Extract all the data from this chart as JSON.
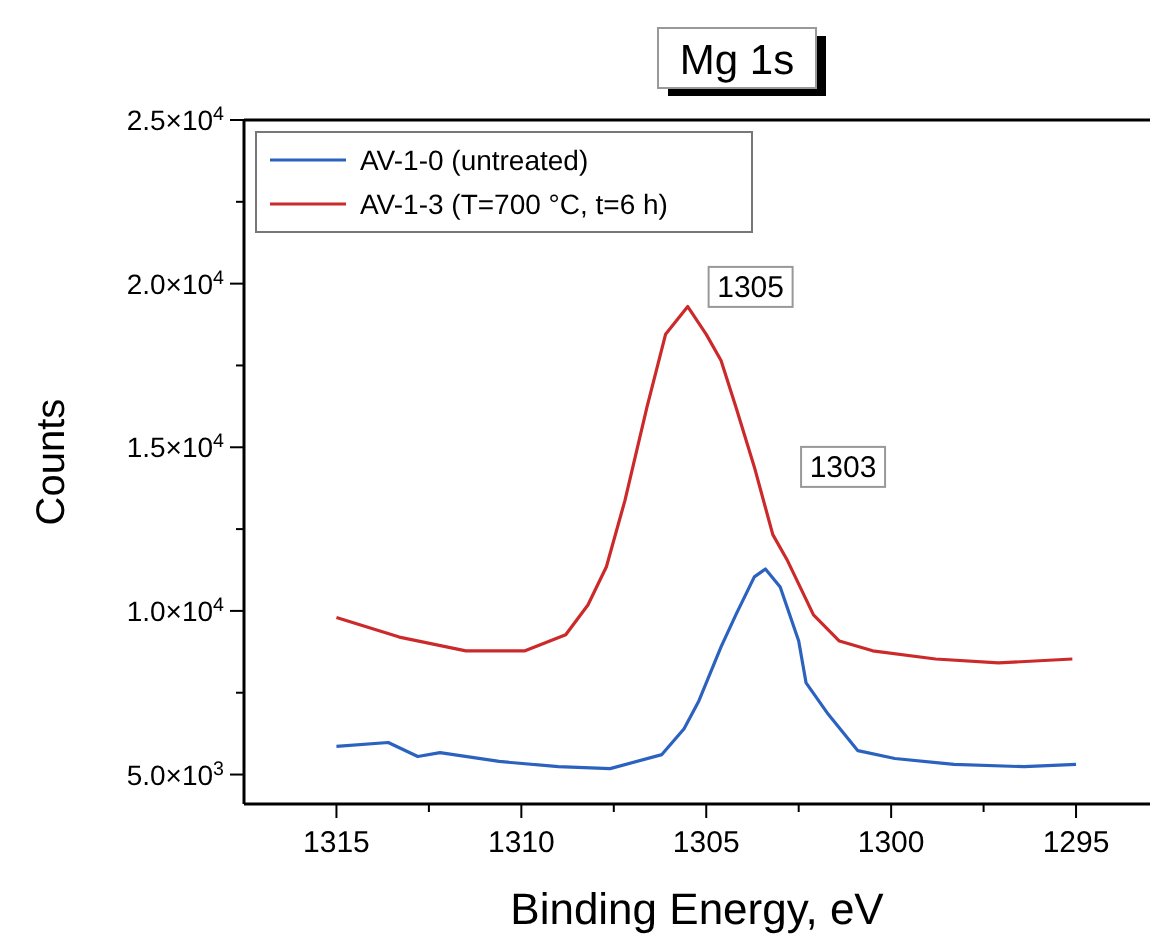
{
  "chart_data": {
    "type": "line",
    "title": "Mg 1s",
    "xlabel": "Binding Energy, eV",
    "ylabel": "Counts",
    "xlim": [
      1317.5,
      1293
    ],
    "ylim": [
      4100,
      25000
    ],
    "xticks": [
      1315,
      {
        "value": 1312.5,
        "label": null
      },
      1310,
      {
        "value": 1307.5,
        "label": null
      },
      1305,
      {
        "value": 1302.5,
        "label": null
      },
      1300,
      {
        "value": 1297.5,
        "label": null
      },
      1295
    ],
    "yticks": [
      {
        "value": 5000,
        "label": "5.0×10$^{3}$"
      },
      {
        "value": 7500,
        "label": null
      },
      {
        "value": 10000,
        "label": "1.0×10$^{4}$"
      },
      {
        "value": 12500,
        "label": null
      },
      {
        "value": 15000,
        "label": "1.5×10$^{4}$"
      },
      {
        "value": 17500,
        "label": null
      },
      {
        "value": 20000,
        "label": "2.0×10$^{4}$"
      },
      {
        "value": 22500,
        "label": null
      },
      {
        "value": 25000,
        "label": "2.5×10$^{4}$"
      }
    ],
    "grid": false,
    "legend": "top left",
    "marker": "none",
    "line_style": "solid",
    "annotations": [
      {
        "text": "1305",
        "x": 1303.8,
        "y": 19900
      },
      {
        "text": "1303",
        "x": 1301.3,
        "y": 14400
      }
    ],
    "series": [
      {
        "name": "AV-1-0 (untreated)",
        "color": "#2b62c0",
        "x": [
          1315,
          1313.6,
          1312.8,
          1312.2,
          1310.6,
          1309,
          1307.6,
          1306.2,
          1305.6,
          1305.2,
          1304.6,
          1304.2,
          1303.7,
          1303.4,
          1303,
          1302.5,
          1302.3,
          1301.7,
          1300.9,
          1299.9,
          1298.3,
          1296.4,
          1295
        ],
        "values": [
          5860,
          5980,
          5550,
          5670,
          5400,
          5240,
          5180,
          5610,
          6400,
          7250,
          8900,
          9880,
          11040,
          11280,
          10730,
          9080,
          7800,
          6840,
          5730,
          5490,
          5310,
          5240,
          5310
        ]
      },
      {
        "name": "AV-1-3 (T=700 °C, t=6 h)",
        "color": "#cc2a2a",
        "x": [
          1315,
          1313.3,
          1311.5,
          1309.9,
          1308.8,
          1308.2,
          1307.7,
          1307.2,
          1306.6,
          1306.1,
          1305.5,
          1305,
          1304.6,
          1304.2,
          1303.7,
          1303.2,
          1302.8,
          1302.1,
          1301.4,
          1300.5,
          1298.8,
          1297.1,
          1295.1
        ],
        "values": [
          9800,
          9200,
          8780,
          8780,
          9270,
          10180,
          11350,
          13370,
          16240,
          18450,
          19300,
          18450,
          17650,
          16240,
          14400,
          12330,
          11530,
          9880,
          9080,
          8780,
          8530,
          8410,
          8530
        ]
      }
    ]
  }
}
